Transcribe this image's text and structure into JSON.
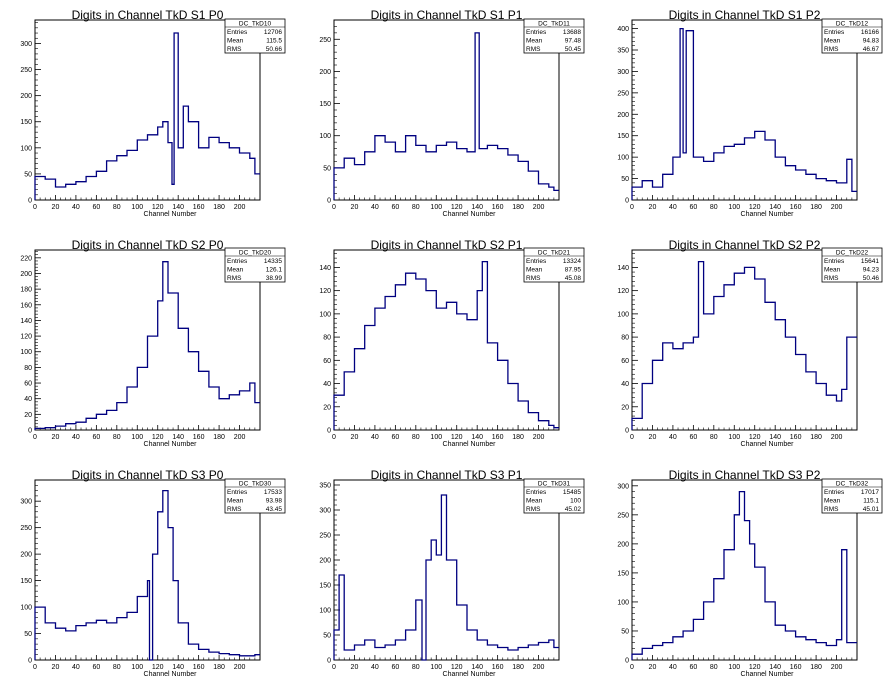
{
  "stats_labels": {
    "entries": "Entries",
    "mean": "Mean",
    "rms": "RMS"
  },
  "line_color": "#000080",
  "chart_data": [
    {
      "type": "line",
      "title": "Digits in Channel TkD S1 P0",
      "stats": {
        "name": "DC_TkD10",
        "entries": "12706",
        "mean": "115.5",
        "rms": "50.66"
      },
      "xlabel": "Channel Number",
      "xlim": [
        0,
        220
      ],
      "ylim": [
        0,
        345
      ],
      "xticks": [
        0,
        20,
        40,
        60,
        80,
        100,
        120,
        140,
        160,
        180,
        200
      ],
      "yticks": [
        0,
        50,
        100,
        150,
        200,
        250,
        300
      ],
      "x": [
        0,
        10,
        20,
        30,
        40,
        50,
        60,
        70,
        80,
        90,
        100,
        110,
        120,
        125,
        130,
        134,
        136,
        140,
        145,
        150,
        160,
        170,
        180,
        190,
        200,
        210,
        215
      ],
      "values": [
        45,
        40,
        25,
        30,
        35,
        45,
        55,
        75,
        85,
        95,
        115,
        125,
        140,
        150,
        110,
        30,
        320,
        100,
        180,
        150,
        100,
        120,
        110,
        100,
        90,
        80,
        50
      ]
    },
    {
      "type": "line",
      "title": "Digits in Channel TkD S1 P1",
      "stats": {
        "name": "DC_TkD11",
        "entries": "13688",
        "mean": "97.48",
        "rms": "50.45"
      },
      "xlabel": "Channel Number",
      "xlim": [
        0,
        220
      ],
      "ylim": [
        0,
        280
      ],
      "xticks": [
        0,
        20,
        40,
        60,
        80,
        100,
        120,
        140,
        160,
        180,
        200
      ],
      "yticks": [
        0,
        50,
        100,
        150,
        200,
        250
      ],
      "x": [
        0,
        10,
        20,
        30,
        40,
        50,
        60,
        70,
        80,
        90,
        100,
        110,
        120,
        130,
        138,
        142,
        150,
        160,
        170,
        180,
        190,
        200,
        210,
        215
      ],
      "values": [
        50,
        65,
        55,
        75,
        100,
        90,
        75,
        100,
        85,
        75,
        85,
        90,
        80,
        75,
        260,
        80,
        85,
        80,
        70,
        60,
        45,
        25,
        20,
        15
      ]
    },
    {
      "type": "line",
      "title": "Digits in Channel TkD S1 P2",
      "stats": {
        "name": "DC_TkD12",
        "entries": "16166",
        "mean": "94.83",
        "rms": "46.67"
      },
      "xlabel": "Channel Number",
      "xlim": [
        0,
        220
      ],
      "ylim": [
        0,
        420
      ],
      "xticks": [
        0,
        20,
        40,
        60,
        80,
        100,
        120,
        140,
        160,
        180,
        200
      ],
      "yticks": [
        0,
        50,
        100,
        150,
        200,
        250,
        300,
        350,
        400
      ],
      "x": [
        0,
        10,
        20,
        30,
        40,
        47,
        50,
        53,
        60,
        70,
        80,
        90,
        100,
        110,
        120,
        130,
        140,
        150,
        160,
        170,
        180,
        190,
        200,
        210,
        215
      ],
      "values": [
        30,
        45,
        30,
        60,
        100,
        400,
        110,
        395,
        100,
        90,
        110,
        125,
        130,
        145,
        160,
        140,
        100,
        80,
        70,
        60,
        50,
        45,
        40,
        95,
        20
      ]
    },
    {
      "type": "line",
      "title": "Digits in Channel TkD S2 P0",
      "stats": {
        "name": "DC_TkD20",
        "entries": "14335",
        "mean": "126.1",
        "rms": "38.99"
      },
      "xlabel": "Channel Number",
      "xlim": [
        0,
        220
      ],
      "ylim": [
        0,
        230
      ],
      "xticks": [
        0,
        20,
        40,
        60,
        80,
        100,
        120,
        140,
        160,
        180,
        200
      ],
      "yticks": [
        0,
        20,
        40,
        60,
        80,
        100,
        120,
        140,
        160,
        180,
        200,
        220
      ],
      "x": [
        0,
        10,
        20,
        30,
        40,
        50,
        60,
        70,
        80,
        90,
        100,
        110,
        120,
        125,
        130,
        140,
        150,
        160,
        170,
        180,
        190,
        200,
        210,
        215
      ],
      "values": [
        2,
        3,
        5,
        8,
        10,
        15,
        20,
        25,
        35,
        55,
        80,
        120,
        165,
        215,
        175,
        130,
        100,
        75,
        55,
        40,
        45,
        50,
        60,
        35
      ]
    },
    {
      "type": "line",
      "title": "Digits in Channel TkD S2 P1",
      "stats": {
        "name": "DC_TkD21",
        "entries": "13324",
        "mean": "87.95",
        "rms": "45.08"
      },
      "xlabel": "Channel Number",
      "xlim": [
        0,
        220
      ],
      "ylim": [
        0,
        155
      ],
      "xticks": [
        0,
        20,
        40,
        60,
        80,
        100,
        120,
        140,
        160,
        180,
        200
      ],
      "yticks": [
        0,
        20,
        40,
        60,
        80,
        100,
        120,
        140
      ],
      "x": [
        0,
        10,
        20,
        30,
        40,
        50,
        60,
        70,
        80,
        90,
        100,
        110,
        120,
        130,
        140,
        145,
        150,
        160,
        170,
        180,
        190,
        200,
        210,
        215
      ],
      "values": [
        30,
        50,
        70,
        90,
        105,
        115,
        125,
        135,
        130,
        120,
        105,
        110,
        100,
        95,
        120,
        145,
        75,
        60,
        40,
        25,
        15,
        8,
        4,
        2
      ]
    },
    {
      "type": "line",
      "title": "Digits in Channel TkD S2 P2",
      "stats": {
        "name": "DC_TkD22",
        "entries": "15641",
        "mean": "94.23",
        "rms": "50.46"
      },
      "xlabel": "Channel Number",
      "xlim": [
        0,
        220
      ],
      "ylim": [
        0,
        155
      ],
      "xticks": [
        0,
        20,
        40,
        60,
        80,
        100,
        120,
        140,
        160,
        180,
        200
      ],
      "yticks": [
        0,
        20,
        40,
        60,
        80,
        100,
        120,
        140
      ],
      "x": [
        0,
        10,
        20,
        30,
        40,
        50,
        60,
        65,
        70,
        80,
        90,
        100,
        110,
        120,
        130,
        140,
        150,
        160,
        170,
        180,
        190,
        200,
        205,
        210
      ],
      "values": [
        10,
        40,
        60,
        75,
        70,
        75,
        80,
        145,
        100,
        115,
        125,
        135,
        140,
        130,
        110,
        95,
        80,
        65,
        50,
        40,
        30,
        25,
        35,
        80
      ]
    },
    {
      "type": "line",
      "title": "Digits in Channel TkD S3 P0",
      "stats": {
        "name": "DC_TkD30",
        "entries": "17533",
        "mean": "93.98",
        "rms": "43.45"
      },
      "xlabel": "Channel Number",
      "xlim": [
        0,
        220
      ],
      "ylim": [
        0,
        340
      ],
      "xticks": [
        0,
        20,
        40,
        60,
        80,
        100,
        120,
        140,
        160,
        180,
        200
      ],
      "yticks": [
        0,
        50,
        100,
        150,
        200,
        250,
        300
      ],
      "x": [
        0,
        10,
        20,
        30,
        40,
        50,
        60,
        70,
        80,
        90,
        100,
        110,
        112,
        115,
        120,
        125,
        130,
        135,
        140,
        150,
        160,
        170,
        180,
        190,
        200,
        210,
        215
      ],
      "values": [
        100,
        70,
        60,
        55,
        65,
        70,
        75,
        70,
        80,
        90,
        120,
        150,
        0,
        200,
        280,
        320,
        250,
        150,
        70,
        30,
        20,
        15,
        12,
        10,
        8,
        8,
        10
      ]
    },
    {
      "type": "line",
      "title": "Digits in Channel TkD S3 P1",
      "stats": {
        "name": "DC_TkD31",
        "entries": "15485",
        "mean": "100",
        "rms": "45.02"
      },
      "xlabel": "Channel Number",
      "xlim": [
        0,
        220
      ],
      "ylim": [
        0,
        360
      ],
      "xticks": [
        0,
        20,
        40,
        60,
        80,
        100,
        120,
        140,
        160,
        180,
        200
      ],
      "yticks": [
        0,
        50,
        100,
        150,
        200,
        250,
        300,
        350
      ],
      "x": [
        0,
        5,
        10,
        20,
        30,
        40,
        50,
        60,
        70,
        80,
        86,
        90,
        95,
        100,
        105,
        110,
        120,
        130,
        140,
        150,
        160,
        170,
        180,
        190,
        200,
        210,
        215
      ],
      "values": [
        60,
        170,
        20,
        30,
        40,
        25,
        30,
        40,
        60,
        120,
        0,
        200,
        240,
        210,
        330,
        200,
        110,
        60,
        40,
        30,
        25,
        20,
        25,
        30,
        35,
        40,
        25
      ]
    },
    {
      "type": "line",
      "title": "Digits in Channel TkD S3 P2",
      "stats": {
        "name": "DC_TkD32",
        "entries": "17017",
        "mean": "115.1",
        "rms": "45.01"
      },
      "xlabel": "Channel Number",
      "xlim": [
        0,
        220
      ],
      "ylim": [
        0,
        310
      ],
      "xticks": [
        0,
        20,
        40,
        60,
        80,
        100,
        120,
        140,
        160,
        180,
        200
      ],
      "yticks": [
        0,
        50,
        100,
        150,
        200,
        250,
        300
      ],
      "x": [
        0,
        10,
        20,
        30,
        40,
        50,
        60,
        70,
        80,
        90,
        100,
        105,
        110,
        115,
        120,
        130,
        140,
        150,
        160,
        170,
        180,
        190,
        200,
        205,
        210
      ],
      "values": [
        10,
        20,
        25,
        30,
        40,
        50,
        70,
        100,
        140,
        190,
        250,
        290,
        240,
        200,
        160,
        100,
        60,
        50,
        40,
        35,
        30,
        25,
        35,
        190,
        30
      ]
    }
  ]
}
